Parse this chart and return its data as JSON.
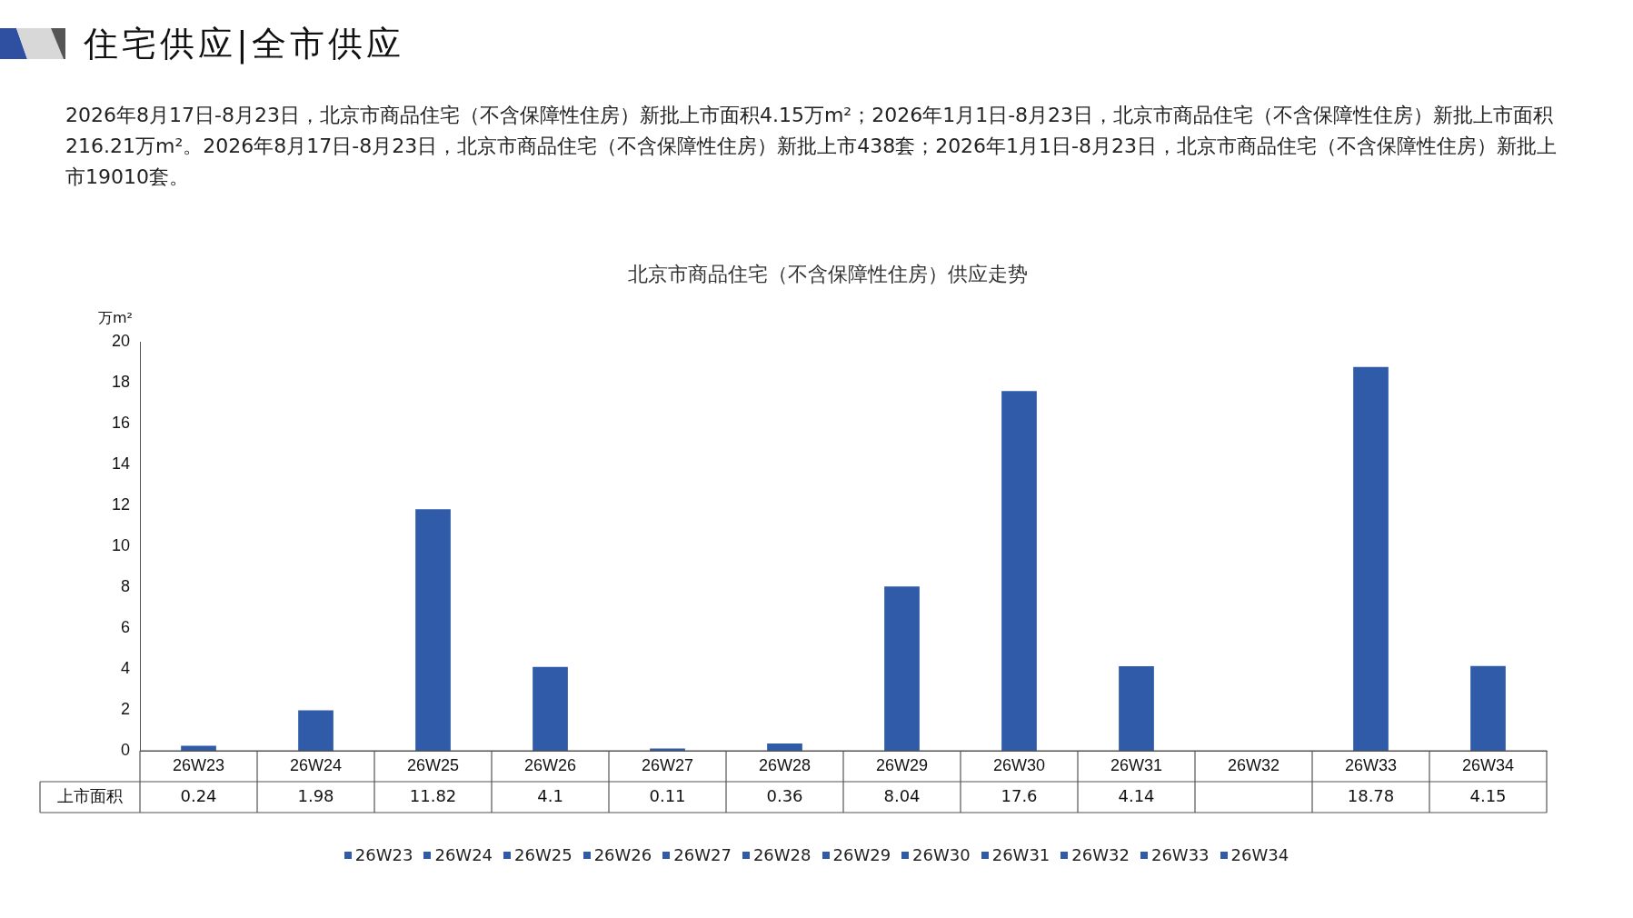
{
  "chart_data": {
    "type": "bar",
    "title": "北京市商品住宅（不含保障性住房）供应走势",
    "annotations": [
      "住宅供应|全市供应",
      "2026年8月17日-8月23日，北京市商品住宅（不含保障性住房）新批上市面积4.15万m²；2026年1月1日-8月23日，北京市商品住宅（不含保障性住房）新批上市面积216.21万m²。2026年8月17日-8月23日，北京市商品住宅（不含保障性住房）新批上市438套；2026年1月1日-8月23日，北京市商品住宅（不含保障性住房）新批上市19010套。"
    ],
    "ylabel": "万m²",
    "categories": [
      "26W23",
      "26W24",
      "26W25",
      "26W26",
      "26W27",
      "26W28",
      "26W29",
      "26W30",
      "26W31",
      "26W32",
      "26W33",
      "26W34"
    ],
    "series": [
      {
        "name": "上市面积",
        "color": "#2f5ba8",
        "values": [
          0.24,
          1.98,
          11.82,
          4.1,
          0.11,
          0.36,
          8.04,
          17.6,
          4.14,
          null,
          18.78,
          4.15
        ]
      }
    ],
    "ylim": [
      0,
      20
    ],
    "yticks": [
      0,
      2,
      4,
      6,
      8,
      10,
      12,
      14,
      16,
      18,
      20
    ],
    "grid": false,
    "legend": "bottom",
    "data_labels": true
  }
}
